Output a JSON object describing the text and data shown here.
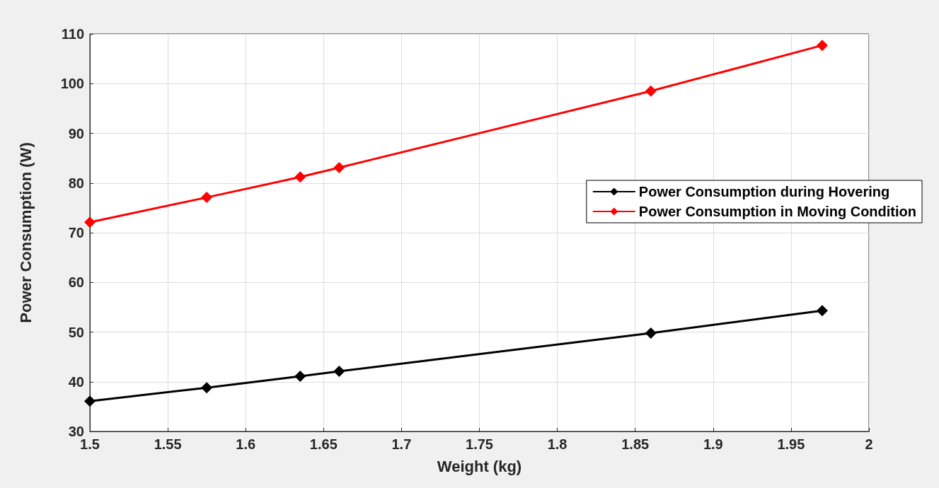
{
  "chart_data": {
    "type": "line",
    "xlabel": "Weight (kg)",
    "ylabel": "Power Consumption (W)",
    "x": [
      1.5,
      1.575,
      1.635,
      1.66,
      1.86,
      1.97
    ],
    "series": [
      {
        "name": "Power Consumption during Hovering",
        "color": "#000000",
        "values": [
          36.1,
          38.8,
          41.1,
          42.1,
          49.8,
          54.3
        ]
      },
      {
        "name": "Power Consumption in Moving Condition",
        "color": "#ff0000",
        "values": [
          72.1,
          77.1,
          81.2,
          83.1,
          98.5,
          107.7
        ]
      }
    ],
    "xlim": [
      1.5,
      2
    ],
    "xticks": [
      1.5,
      1.55,
      1.6,
      1.65,
      1.7,
      1.75,
      1.8,
      1.85,
      1.9,
      1.95,
      2
    ],
    "ylim": [
      30,
      110
    ],
    "yticks": [
      30,
      40,
      50,
      60,
      70,
      80,
      90,
      100,
      110
    ],
    "grid": true,
    "legend": "right",
    "marker": "diamond",
    "line_style": "solid"
  }
}
